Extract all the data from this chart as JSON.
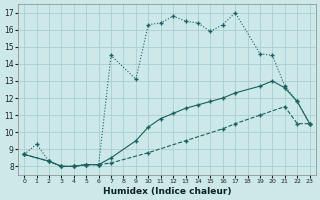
{
  "xlabel": "Humidex (Indice chaleur)",
  "bg_color": "#cce8e8",
  "grid_color": "#aacece",
  "line_color": "#1a6060",
  "xlim": [
    -0.5,
    23.5
  ],
  "ylim": [
    7.5,
    17.5
  ],
  "xtick_vals": [
    0,
    1,
    2,
    3,
    4,
    5,
    6,
    7,
    8,
    9,
    10,
    11,
    12,
    13,
    14,
    15,
    16,
    17,
    18,
    19,
    20,
    21,
    22,
    23
  ],
  "ytick_vals": [
    8,
    9,
    10,
    11,
    12,
    13,
    14,
    15,
    16,
    17
  ],
  "line1_x": [
    0,
    1,
    2,
    3,
    4,
    5,
    6,
    7,
    9,
    10,
    11,
    12,
    13,
    14,
    15,
    16,
    17,
    19,
    20,
    21,
    22,
    23
  ],
  "line1_y": [
    8.7,
    9.3,
    8.3,
    8.0,
    8.0,
    8.1,
    8.1,
    14.5,
    13.1,
    16.3,
    16.4,
    16.8,
    16.5,
    16.4,
    15.9,
    16.3,
    17.0,
    14.6,
    14.5,
    12.7,
    11.8,
    10.5
  ],
  "line2_x": [
    0,
    2,
    3,
    4,
    5,
    6,
    7,
    9,
    10,
    11,
    12,
    13,
    14,
    15,
    16,
    17,
    19,
    20,
    21,
    22,
    23
  ],
  "line2_y": [
    8.7,
    8.3,
    8.0,
    8.0,
    8.1,
    8.1,
    8.5,
    9.5,
    10.3,
    10.8,
    11.1,
    11.4,
    11.6,
    11.8,
    12.0,
    12.3,
    12.7,
    13.0,
    12.6,
    11.8,
    10.5
  ],
  "line3_x": [
    0,
    2,
    3,
    4,
    5,
    6,
    7,
    10,
    13,
    16,
    17,
    19,
    21,
    22,
    23
  ],
  "line3_y": [
    8.7,
    8.3,
    8.0,
    8.0,
    8.1,
    8.1,
    8.2,
    8.8,
    9.5,
    10.2,
    10.5,
    11.0,
    11.5,
    10.5,
    10.5
  ]
}
